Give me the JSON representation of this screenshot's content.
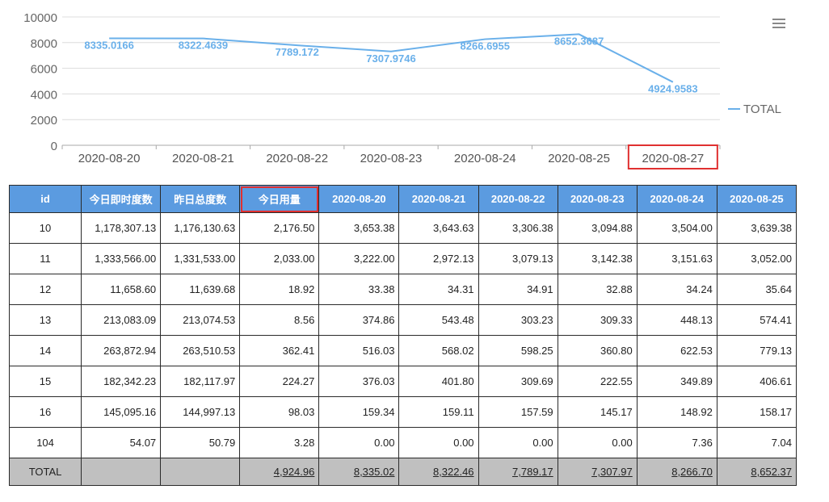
{
  "chart_data": {
    "type": "line",
    "categories": [
      "2020-08-20",
      "2020-08-21",
      "2020-08-22",
      "2020-08-23",
      "2020-08-24",
      "2020-08-25",
      "2020-08-27"
    ],
    "series": [
      {
        "name": "TOTAL",
        "values": [
          8335.0166,
          8322.4639,
          7789.172,
          7307.9746,
          8266.6955,
          8652.3687,
          4924.9583
        ],
        "labels": [
          "8335.0166",
          "8322.4639",
          "7789.172",
          "7307.9746",
          "8266.6955",
          "8652.3687",
          "4924.9583"
        ],
        "color": "#6ab0ea"
      }
    ],
    "yticks": [
      "10000",
      "8000",
      "6000",
      "4000",
      "2000",
      "0"
    ],
    "ylim": [
      0,
      10000
    ],
    "grid": true,
    "legend_position": "right",
    "highlighted_category": "2020-08-27"
  },
  "colors": {
    "line": "#6ab0ea",
    "header_bg": "#5b9be0",
    "total_bg": "#c0c0c0",
    "highlight": "#e03030"
  },
  "icons": {
    "menu": "menu-icon"
  },
  "table": {
    "headers": [
      "id",
      "今日即时度数",
      "昨日总度数",
      "今日用量",
      "2020-08-20",
      "2020-08-21",
      "2020-08-22",
      "2020-08-23",
      "2020-08-24",
      "2020-08-25"
    ],
    "highlighted_header": "今日用量",
    "rows": [
      [
        "10",
        "1,178,307.13",
        "1,176,130.63",
        "2,176.50",
        "3,653.38",
        "3,643.63",
        "3,306.38",
        "3,094.88",
        "3,504.00",
        "3,639.38"
      ],
      [
        "11",
        "1,333,566.00",
        "1,331,533.00",
        "2,033.00",
        "3,222.00",
        "2,972.13",
        "3,079.13",
        "3,142.38",
        "3,151.63",
        "3,052.00"
      ],
      [
        "12",
        "11,658.60",
        "11,639.68",
        "18.92",
        "33.38",
        "34.31",
        "34.91",
        "32.88",
        "34.24",
        "35.64"
      ],
      [
        "13",
        "213,083.09",
        "213,074.53",
        "8.56",
        "374.86",
        "543.48",
        "303.23",
        "309.33",
        "448.13",
        "574.41"
      ],
      [
        "14",
        "263,872.94",
        "263,510.53",
        "362.41",
        "516.03",
        "568.02",
        "598.25",
        "360.80",
        "622.53",
        "779.13"
      ],
      [
        "15",
        "182,342.23",
        "182,117.97",
        "224.27",
        "376.03",
        "401.80",
        "309.69",
        "222.55",
        "349.89",
        "406.61"
      ],
      [
        "16",
        "145,095.16",
        "144,997.13",
        "98.03",
        "159.34",
        "159.11",
        "157.59",
        "145.17",
        "148.92",
        "158.17"
      ],
      [
        "104",
        "54.07",
        "50.79",
        "3.28",
        "0.00",
        "0.00",
        "0.00",
        "0.00",
        "7.36",
        "7.04"
      ]
    ],
    "total": [
      "TOTAL",
      "",
      "",
      "4,924.96",
      "8,335.02",
      "8,322.46",
      "7,789.17",
      "7,307.97",
      "8,266.70",
      "8,652.37"
    ]
  }
}
